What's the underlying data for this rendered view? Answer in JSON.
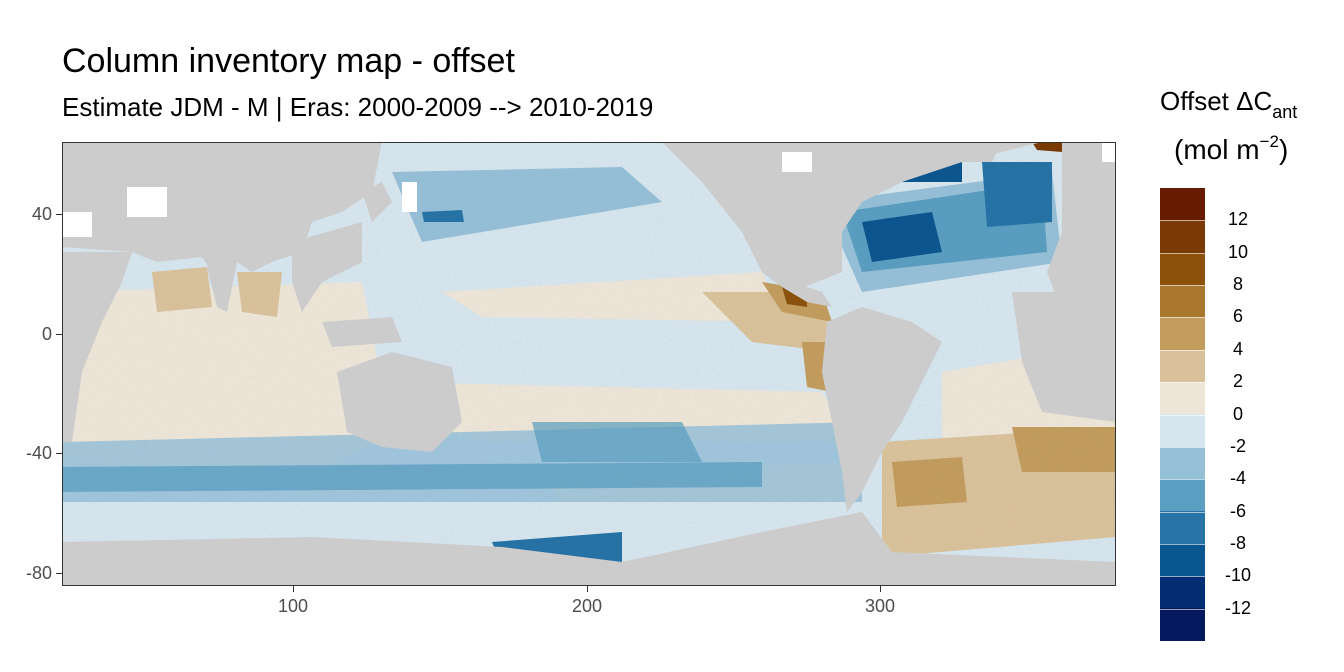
{
  "title": "Column inventory map - offset",
  "subtitle": "Estimate JDM - M | Eras: 2000-2009 --> 2010-2019",
  "legend": {
    "title_main": "Offset ΔC",
    "title_sub": "ant",
    "unit_prefix": "(mol m",
    "unit_exp": "−2",
    "unit_suffix": ")",
    "labels": [
      "12",
      "10",
      "8",
      "6",
      "4",
      "2",
      "0",
      "-2",
      "-4",
      "-6",
      "-8",
      "-10",
      "-12"
    ],
    "colors": [
      "#671b00",
      "#7a3a06",
      "#8c5209",
      "#a9782e",
      "#c29d5e",
      "#d9c29b",
      "#ede6d8",
      "#d6e5ee",
      "#96c0d8",
      "#5a9ec1",
      "#2873a6",
      "#08558f",
      "#042e73",
      "#05195e"
    ]
  },
  "axes": {
    "x_ticks": [
      "100",
      "200",
      "300"
    ],
    "y_ticks": [
      "40",
      "0",
      "-40",
      "-80"
    ]
  },
  "colors": {
    "land": "#cccccc",
    "panel_border": "#333333"
  }
}
